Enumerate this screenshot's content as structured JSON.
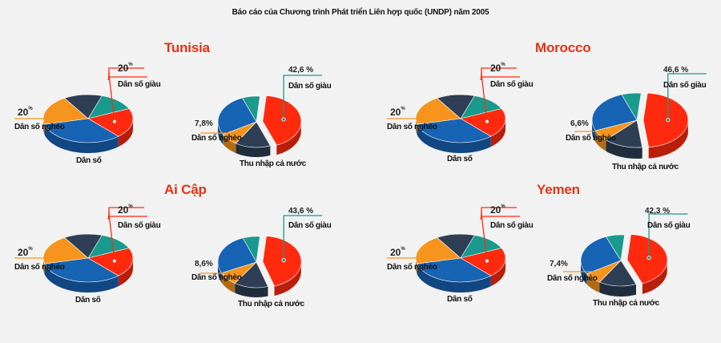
{
  "title": "Báo cáo của Chương trình Phát triển Liên hợp quốc (UNDP) năm 2005",
  "labels": {
    "rich": "Dân số giàu",
    "poor": "Dân số nghèo",
    "population": "Dân số",
    "income": "Thu nhập cả nước",
    "percent_sign": "%"
  },
  "colors": {
    "red": "#ff2a0d",
    "blue": "#1763b4",
    "orange": "#f7941d",
    "navy": "#2d3e55",
    "teal": "#1a9a8c",
    "accent": "#e63312"
  },
  "chart_data": [
    {
      "type": "pie",
      "country": "Tunisia",
      "population": {
        "rich": 20,
        "poor": 20
      },
      "income": {
        "rich": 42.6,
        "poor": 7.8
      },
      "rich_income_label": "42,6",
      "poor_income_label": "7,8"
    },
    {
      "type": "pie",
      "country": "Morocco",
      "population": {
        "rich": 20,
        "poor": 20
      },
      "income": {
        "rich": 46.6,
        "poor": 6.6
      },
      "rich_income_label": "46,6",
      "poor_income_label": "6,6"
    },
    {
      "type": "pie",
      "country": "Ai Cập",
      "population": {
        "rich": 20,
        "poor": 20
      },
      "income": {
        "rich": 43.6,
        "poor": 8.6
      },
      "rich_income_label": "43,6",
      "poor_income_label": "8,6"
    },
    {
      "type": "pie",
      "country": "Yemen",
      "population": {
        "rich": 20,
        "poor": 20
      },
      "income": {
        "rich": 42.3,
        "poor": 7.4
      },
      "rich_income_label": "42,3",
      "poor_income_label": "7,4"
    }
  ]
}
